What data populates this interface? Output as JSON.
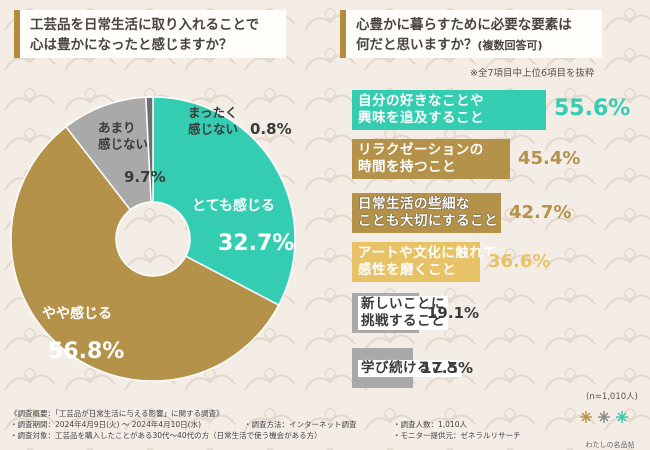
{
  "left": {
    "question": "工芸品を日常生活に取り入れることで\n心は豊かになったと感じますか？"
  },
  "right": {
    "question_line1": "心豊かに暮らすために必要な要素は",
    "question_line2": "何だと思いますか？",
    "question_suffix": "(複数回答可)",
    "top_note": "※全7項目中上位6項目を抜粋",
    "sample_note": "(n=1,010人)"
  },
  "colors": {
    "teal": "#34cdb1",
    "gold": "#b5924a",
    "light_gold": "#e8c266",
    "gray": "#a9a9a9",
    "dark_gray": "#6e6e6e",
    "white": "#ffffff"
  },
  "chart_data": [
    {
      "type": "pie",
      "categories": [
        "とても感じる",
        "やや感じる",
        "あまり感じない",
        "まったく感じない"
      ],
      "values": [
        32.7,
        56.8,
        9.7,
        0.8
      ],
      "labels": [
        {
          "text": "とても感じる",
          "value": "32.7%"
        },
        {
          "text": "やや感じる",
          "value": "56.8%"
        },
        {
          "text": "あまり\n感じない",
          "value": "9.7%"
        },
        {
          "text": "まったく\n感じない",
          "value": "0.8%"
        }
      ]
    },
    {
      "type": "bar",
      "categories": [
        "自分の好きなことや\n興味を追及すること",
        "リラクゼーションの\n時間を持つこと",
        "日常生活の些細な\nことも大切にすること",
        "アートや文化に触れて\n感性を磨くこと",
        "新しいことに\n挑戦すること",
        "学び続けること"
      ],
      "values": [
        55.6,
        45.4,
        42.7,
        36.6,
        19.1,
        17.5
      ],
      "value_labels": [
        "55.6%",
        "45.4%",
        "42.7%",
        "36.6%",
        "19.1%",
        "17.5%"
      ]
    }
  ],
  "footer": {
    "line1": "《調査概要：「工芸品が日常生活に与える影響」に関する調査》",
    "line2": "・調査期間：2024年4月9日(火) ～ 2024年4月10日(水)",
    "line3": "・調査対象：工芸品を購入したことがある30代～40代の方（日常生活で使う機会がある方）",
    "method": "・調査方法：インターネット調査",
    "count": "・調査人数：1,010人",
    "provider": "・モニター提供元：ゼネラルリサーチ",
    "logo_text": "わたしの名品帖"
  }
}
